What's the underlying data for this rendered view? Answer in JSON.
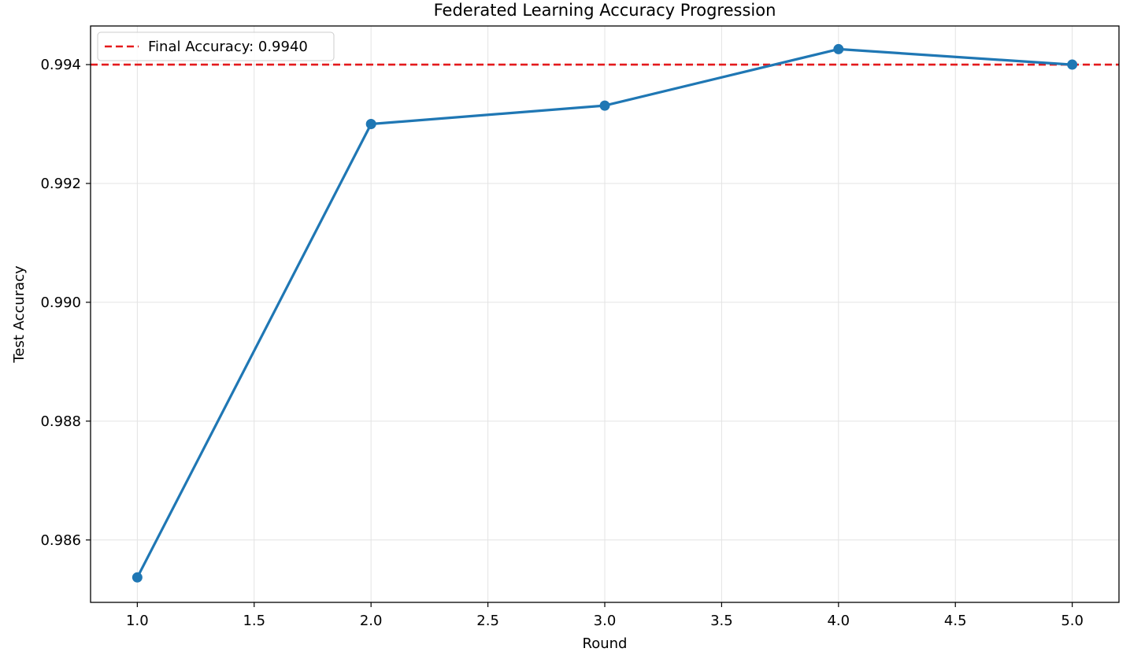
{
  "chart_data": {
    "type": "line",
    "title": "Federated Learning Accuracy Progression",
    "xlabel": "Round",
    "ylabel": "Test Accuracy",
    "xlim": [
      0.8,
      5.2
    ],
    "ylim": [
      0.98495,
      0.99465
    ],
    "x_ticks": [
      1.0,
      1.5,
      2.0,
      2.5,
      3.0,
      3.5,
      4.0,
      4.5,
      5.0
    ],
    "x_tick_labels": [
      "1.0",
      "1.5",
      "2.0",
      "2.5",
      "3.0",
      "3.5",
      "4.0",
      "4.5",
      "5.0"
    ],
    "y_ticks": [
      0.986,
      0.988,
      0.99,
      0.992,
      0.994
    ],
    "y_tick_labels": [
      "0.986",
      "0.988",
      "0.990",
      "0.992",
      "0.994"
    ],
    "grid": true,
    "legend_position": "top-left",
    "series": [
      {
        "x": [
          1,
          2,
          3,
          4,
          5
        ],
        "y": [
          0.98537,
          0.993,
          0.99331,
          0.99426,
          0.994
        ],
        "color": "#1f77b4",
        "marker": "circle"
      }
    ],
    "reference_line": {
      "y": 0.994,
      "label": "Final Accuracy: 0.9940",
      "color": "#e41a1c",
      "style": "dashed"
    }
  }
}
